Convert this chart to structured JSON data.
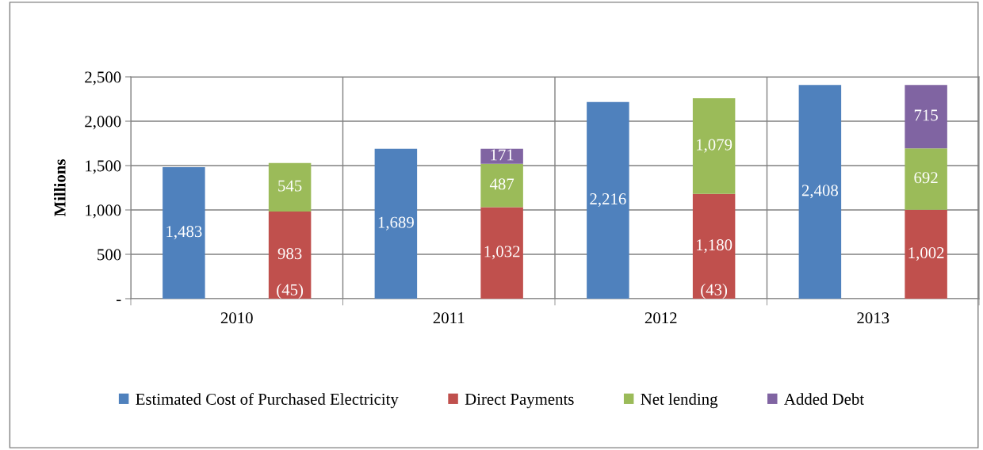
{
  "chart_data": {
    "type": "bar",
    "ylabel": "Millions",
    "categories": [
      "2010",
      null,
      "2011",
      null,
      "2012",
      null,
      "2013",
      null
    ],
    "stacked": true,
    "series": [
      {
        "name": "Estimated Cost of Purchased Electricity",
        "color": "#4f81bd",
        "values": [
          1483,
          null,
          1689,
          null,
          2216,
          null,
          2408,
          null
        ],
        "value_labels": [
          "1,483",
          null,
          "1,689",
          null,
          "2,216",
          null,
          "2,408",
          null
        ]
      },
      {
        "name": "Direct Payments",
        "color": "#c0504d",
        "values": [
          null,
          983,
          null,
          1032,
          null,
          1180,
          null,
          1002
        ],
        "value_labels": [
          null,
          "983",
          null,
          "1,032",
          null,
          "1,180",
          null,
          "1,002"
        ]
      },
      {
        "name": "Net lending",
        "color": "#9bbb59",
        "values": [
          null,
          545,
          null,
          487,
          null,
          1079,
          null,
          692
        ],
        "value_labels": [
          null,
          "545",
          null,
          "487",
          null,
          "1,079",
          null,
          "692"
        ]
      },
      {
        "name": "Added Debt",
        "color": "#8064a2",
        "values": [
          null,
          null,
          null,
          171,
          null,
          null,
          null,
          715
        ],
        "value_labels": [
          null,
          "(45)",
          null,
          "171",
          null,
          "(43)",
          null,
          "715"
        ]
      }
    ],
    "ylim": [
      0,
      2500
    ],
    "yticks": [
      {
        "value": 0,
        "label": "-"
      },
      {
        "value": 500,
        "label": "500"
      },
      {
        "value": 1000,
        "label": "1,000"
      },
      {
        "value": 1500,
        "label": "1,500"
      },
      {
        "value": 2000,
        "label": "2,000"
      },
      {
        "value": 2500,
        "label": "2,500"
      }
    ],
    "grid": true,
    "legend": "bottom"
  }
}
